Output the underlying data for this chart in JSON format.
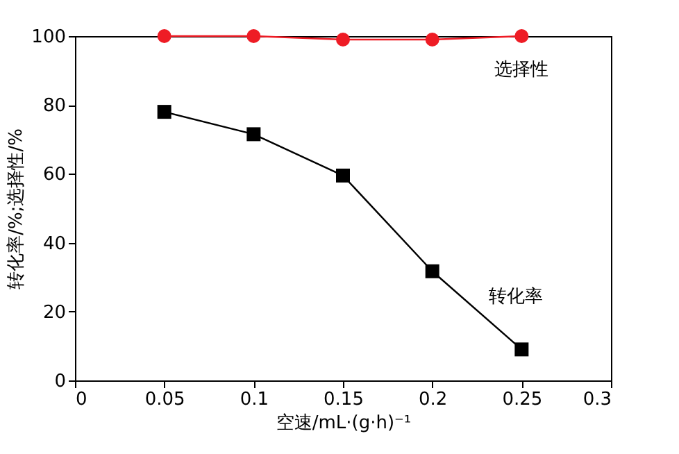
{
  "chart_data": {
    "type": "line",
    "xlabel": "空速/mL·(g·h)⁻¹",
    "ylabel": "转化率/%;选择性/%",
    "x": [
      0.05,
      0.1,
      0.15,
      0.2,
      0.25
    ],
    "series": [
      {
        "name": "选择性",
        "color": "#ee1c25",
        "marker": "circle",
        "values": [
          100,
          100,
          99,
          99,
          100
        ]
      },
      {
        "name": "转化率",
        "color": "#000000",
        "marker": "square",
        "values": [
          78,
          71.5,
          59.5,
          31.7,
          9
        ]
      }
    ],
    "xlim": [
      0,
      0.3
    ],
    "xticks": [
      0,
      0.05,
      0.1,
      0.15,
      0.2,
      0.25,
      0.3
    ],
    "ylim": [
      0,
      100
    ],
    "yticks": [
      0,
      20,
      40,
      60,
      80,
      100
    ],
    "grid": false,
    "line_style": "solid"
  }
}
